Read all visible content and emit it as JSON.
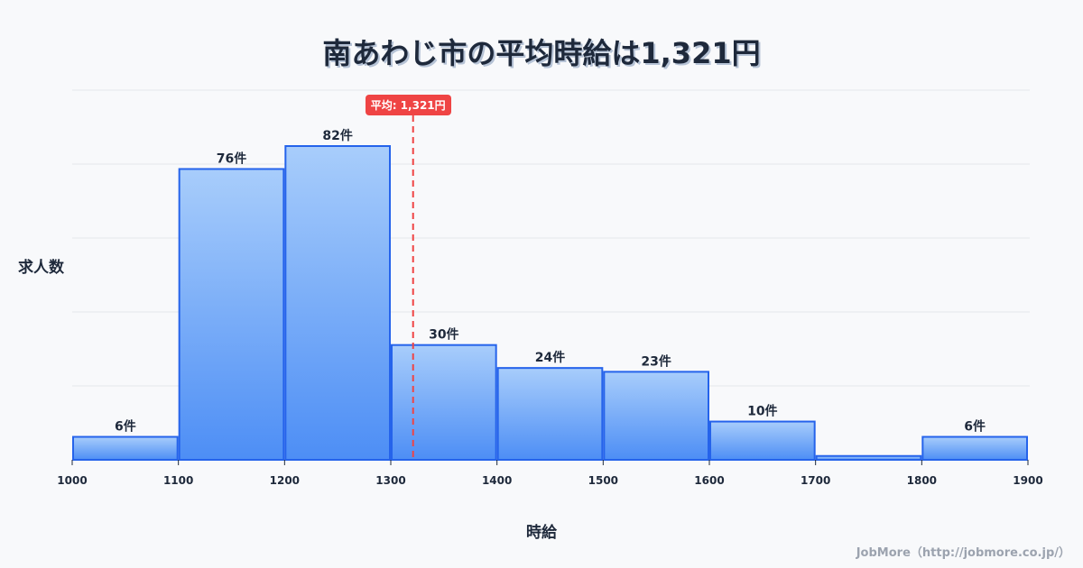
{
  "title": "南あわじ市の平均時給は1,321円",
  "ylabel": "求人数",
  "xlabel": "時給",
  "credit": "JobMore（http://jobmore.co.jp/）",
  "average": {
    "value": 1321,
    "label": "平均: 1,321円",
    "color": "#ef4444"
  },
  "colors": {
    "bar_top": "#a8cdfb",
    "bar_bottom": "#4d8ef5",
    "bar_border": "#2563eb",
    "grid": "#e5e7eb"
  },
  "chart_data": {
    "type": "bar",
    "title": "南あわじ市の平均時給は1,321円",
    "xlabel": "時給",
    "ylabel": "求人数",
    "bins": [
      [
        1000,
        1100
      ],
      [
        1100,
        1200
      ],
      [
        1200,
        1300
      ],
      [
        1300,
        1400
      ],
      [
        1400,
        1500
      ],
      [
        1500,
        1600
      ],
      [
        1600,
        1700
      ],
      [
        1700,
        1800
      ],
      [
        1800,
        1900
      ]
    ],
    "categories": [
      "1000-1100",
      "1100-1200",
      "1200-1300",
      "1300-1400",
      "1400-1500",
      "1500-1600",
      "1600-1700",
      "1700-1800",
      "1800-1900"
    ],
    "values": [
      6,
      76,
      82,
      30,
      24,
      23,
      10,
      1,
      6
    ],
    "value_labels": [
      "6件",
      "76件",
      "82件",
      "30件",
      "24件",
      "23件",
      "10件",
      "",
      "6件"
    ],
    "x_ticks": [
      "1000",
      "1100",
      "1200",
      "1300",
      "1400",
      "1500",
      "1600",
      "1700",
      "1800",
      "1900"
    ],
    "ylim": [
      0,
      96
    ],
    "grid": true,
    "average_line": 1321
  }
}
